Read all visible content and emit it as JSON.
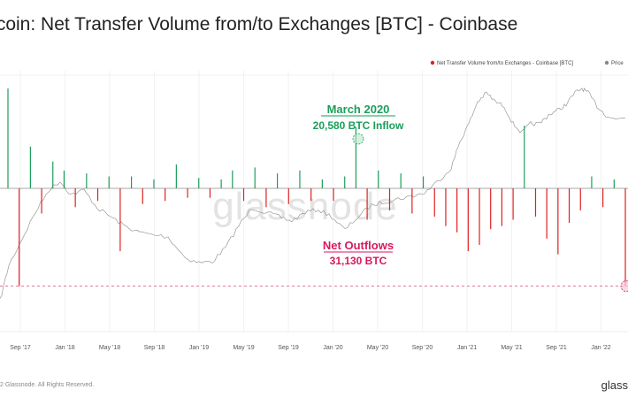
{
  "title": "tcoin: Net Transfer Volume from/to Exchanges [BTC] - Coinbase",
  "copyright": "2 Glassnode. All Rights Reserved.",
  "brand": "glass",
  "watermark": "glassnode",
  "chart_data": {
    "type": "bar",
    "legend": [
      {
        "label": "Net Transfer Volume from/to Exchanges - Coinbase [BTC]",
        "color": "#e02020"
      },
      {
        "label": "Price",
        "color": "#888888"
      }
    ],
    "legend_position": "top-right",
    "x_ticks": [
      "Sep '17",
      "Jan '18",
      "May '18",
      "Sep '18",
      "Jan '19",
      "May '19",
      "Sep '19",
      "Jan '20",
      "May '20",
      "Sep '20",
      "Jan '21",
      "May '21",
      "Sep '21",
      "Jan '22"
    ],
    "ylim": [
      -38000,
      35000
    ],
    "inflow_color": "#1a9e5a",
    "outflow_color": "#e02020",
    "price_color": "#999999",
    "grid": true,
    "series": [
      {
        "name": "Net Transfer Volume from/to Exchanges - Coinbase [BTC]",
        "points": [
          {
            "x": "Aug '17",
            "y": 33500
          },
          {
            "x": "Sep '17",
            "y": -31130
          },
          {
            "x": "Oct '17",
            "y": 14000
          },
          {
            "x": "Nov '17",
            "y": -8000
          },
          {
            "x": "Dec '17",
            "y": 9000
          },
          {
            "x": "Jan '18",
            "y": 6000
          },
          {
            "x": "Feb '18",
            "y": -6000
          },
          {
            "x": "Mar '18",
            "y": 5000
          },
          {
            "x": "Apr '18",
            "y": -4000
          },
          {
            "x": "May '18",
            "y": 4000
          },
          {
            "x": "Jun '18",
            "y": -20000
          },
          {
            "x": "Jul '18",
            "y": 4000
          },
          {
            "x": "Aug '18",
            "y": -5000
          },
          {
            "x": "Sep '18",
            "y": 3000
          },
          {
            "x": "Oct '18",
            "y": -4000
          },
          {
            "x": "Nov '18",
            "y": 8000
          },
          {
            "x": "Dec '18",
            "y": -3000
          },
          {
            "x": "Jan '19",
            "y": 3500
          },
          {
            "x": "Feb '19",
            "y": -3000
          },
          {
            "x": "Mar '19",
            "y": 3000
          },
          {
            "x": "Apr '19",
            "y": 6000
          },
          {
            "x": "May '19",
            "y": -4000
          },
          {
            "x": "Jun '19",
            "y": 7000
          },
          {
            "x": "Jul '19",
            "y": -6000
          },
          {
            "x": "Aug '19",
            "y": 5000
          },
          {
            "x": "Sep '19",
            "y": -5000
          },
          {
            "x": "Oct '19",
            "y": 6000
          },
          {
            "x": "Nov '19",
            "y": -4000
          },
          {
            "x": "Dec '19",
            "y": 3000
          },
          {
            "x": "Jan '20",
            "y": -4000
          },
          {
            "x": "Feb '20",
            "y": 4000
          },
          {
            "x": "Mar '20",
            "y": 20580
          },
          {
            "x": "Apr '20",
            "y": -10000
          },
          {
            "x": "May '20",
            "y": 6000
          },
          {
            "x": "Jun '20",
            "y": -7000
          },
          {
            "x": "Jul '20",
            "y": 5000
          },
          {
            "x": "Aug '20",
            "y": -8000
          },
          {
            "x": "Sep '20",
            "y": 4000
          },
          {
            "x": "Oct '20",
            "y": -9000
          },
          {
            "x": "Nov '20",
            "y": -12000
          },
          {
            "x": "Dec '20",
            "y": -14000
          },
          {
            "x": "Jan '21",
            "y": -20000
          },
          {
            "x": "Feb '21",
            "y": -18000
          },
          {
            "x": "Mar '21",
            "y": -13000
          },
          {
            "x": "Apr '21",
            "y": -12000
          },
          {
            "x": "May '21",
            "y": -10000
          },
          {
            "x": "Jun '21",
            "y": 21000
          },
          {
            "x": "Jul '21",
            "y": -9000
          },
          {
            "x": "Aug '21",
            "y": -16000
          },
          {
            "x": "Sep '21",
            "y": -21000
          },
          {
            "x": "Oct '21",
            "y": -11000
          },
          {
            "x": "Nov '21",
            "y": -7000
          },
          {
            "x": "Dec '21",
            "y": 4000
          },
          {
            "x": "Jan '22",
            "y": -6000
          },
          {
            "x": "Feb '22",
            "y": 3000
          },
          {
            "x": "Mar '22",
            "y": -31130
          }
        ]
      }
    ],
    "annotations": [
      {
        "title": "March 2020",
        "subtitle": "20,580 BTC Inflow",
        "value": 20580,
        "color": "#1a9e5a"
      },
      {
        "title": "Net Outflows",
        "subtitle": "31,130 BTC",
        "value": -31130,
        "color": "#d6195e"
      }
    ]
  }
}
